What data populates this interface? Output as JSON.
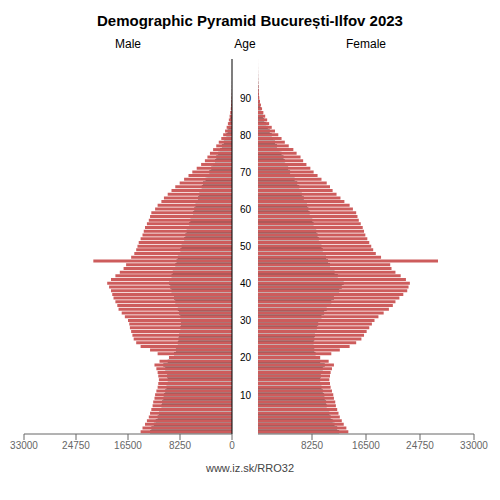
{
  "chart_data": [
    {
      "type": "bar",
      "orientation": "horizontal",
      "title": "Demographic Pyramid București-Ilfov 2023",
      "xlabel": "Male",
      "ylabel": "Age",
      "categories": [
        null,
        null,
        null,
        null,
        null,
        null,
        null,
        null,
        null,
        null,
        10,
        null,
        null,
        null,
        null,
        null,
        null,
        null,
        null,
        null,
        20,
        null,
        null,
        null,
        null,
        null,
        null,
        null,
        null,
        null,
        30,
        null,
        null,
        null,
        null,
        null,
        null,
        null,
        null,
        null,
        40,
        null,
        null,
        null,
        null,
        null,
        null,
        null,
        null,
        null,
        50,
        null,
        null,
        null,
        null,
        null,
        null,
        null,
        null,
        null,
        60,
        null,
        null,
        null,
        null,
        null,
        null,
        null,
        null,
        null,
        70,
        null,
        null,
        null,
        null,
        null,
        null,
        null,
        null,
        null,
        80,
        null,
        null,
        null,
        null,
        null,
        null,
        null,
        null,
        null,
        90,
        null,
        null,
        null,
        null,
        null,
        null,
        null,
        null,
        null,
        null
      ],
      "xlim": [
        0,
        33000
      ],
      "xticks": [
        0,
        8250,
        16500,
        24750,
        33000
      ],
      "series": [
        {
          "color": "#1a1a1a",
          "values": [
            13000,
            12800,
            12400,
            12100,
            11800,
            11600,
            11400,
            11200,
            11100,
            10900,
            10800,
            10600,
            10400,
            10300,
            10200,
            10300,
            10400,
            10600,
            10900,
            10200,
            9500,
            9200,
            8900,
            8700,
            8600,
            8500,
            8400,
            8300,
            8200,
            8100,
            8000,
            8200,
            8400,
            8600,
            8800,
            9000,
            9200,
            9400,
            9600,
            9800,
            10000,
            9800,
            9600,
            9400,
            9200,
            9000,
            8800,
            8600,
            8400,
            8200,
            8000,
            7800,
            7600,
            7400,
            7200,
            7000,
            6800,
            6600,
            6400,
            6200,
            6000,
            5800,
            5600,
            5400,
            5200,
            5000,
            4800,
            4600,
            4200,
            3900,
            3600,
            3300,
            3000,
            2700,
            2500,
            2200,
            1900,
            1600,
            1300,
            1100,
            900,
            700,
            550,
            420,
            320,
            240,
            170,
            120,
            80,
            52,
            33,
            20,
            13,
            8,
            5,
            3,
            2,
            1,
            1,
            0,
            0
          ]
        },
        {
          "color": "#cd5c5c",
          "values": [
            14500,
            14200,
            13800,
            13500,
            13200,
            13000,
            12800,
            12600,
            12500,
            12300,
            12200,
            12000,
            11800,
            11700,
            11600,
            11700,
            11800,
            12000,
            12300,
            11500,
            10000,
            11800,
            13000,
            14500,
            15200,
            15600,
            15800,
            16000,
            16200,
            16300,
            16500,
            17000,
            17500,
            18000,
            18200,
            18500,
            18800,
            19000,
            19200,
            19500,
            19800,
            19200,
            18500,
            17800,
            17200,
            16800,
            22000,
            16000,
            15500,
            15200,
            15000,
            14800,
            14500,
            14200,
            14000,
            13800,
            13500,
            13200,
            13000,
            12800,
            12200,
            11800,
            11200,
            10800,
            10200,
            9600,
            9000,
            8300,
            7600,
            6900,
            6300,
            5600,
            4900,
            4300,
            3900,
            3500,
            3000,
            2500,
            2100,
            1700,
            1400,
            1100,
            850,
            650,
            500,
            380,
            270,
            190,
            130,
            85,
            55,
            35,
            22,
            14,
            9,
            5,
            3,
            2,
            1,
            1,
            0
          ]
        }
      ]
    },
    {
      "type": "bar",
      "orientation": "horizontal",
      "xlabel": "Female",
      "annotations": [
        "www.iz.sk/RRO32"
      ],
      "categories": [
        null,
        null,
        null,
        null,
        null,
        null,
        null,
        null,
        null,
        null,
        10,
        null,
        null,
        null,
        null,
        null,
        null,
        null,
        null,
        null,
        20,
        null,
        null,
        null,
        null,
        null,
        null,
        null,
        null,
        null,
        30,
        null,
        null,
        null,
        null,
        null,
        null,
        null,
        null,
        null,
        40,
        null,
        null,
        null,
        null,
        null,
        null,
        null,
        null,
        null,
        50,
        null,
        null,
        null,
        null,
        null,
        null,
        null,
        null,
        null,
        60,
        null,
        null,
        null,
        null,
        null,
        null,
        null,
        null,
        null,
        70,
        null,
        null,
        null,
        null,
        null,
        null,
        null,
        null,
        null,
        80,
        null,
        null,
        null,
        null,
        null,
        null,
        null,
        null,
        null,
        90,
        null,
        null,
        null,
        null,
        null,
        null,
        null,
        null,
        null,
        null
      ],
      "xlim": [
        0,
        33000
      ],
      "xticks": [
        0,
        8250,
        16500,
        24750,
        33000
      ],
      "series": [
        {
          "color": "#1a1a1a",
          "values": [
            12400,
            12100,
            11700,
            11400,
            11100,
            10900,
            10700,
            10500,
            10400,
            10200,
            10100,
            9900,
            9700,
            9600,
            9500,
            9600,
            9700,
            9900,
            10200,
            9500,
            9000,
            8800,
            8600,
            8500,
            8500,
            8600,
            8700,
            8800,
            9000,
            9200,
            9400,
            9700,
            10100,
            10500,
            10900,
            11200,
            11600,
            12000,
            12400,
            12800,
            13100,
            12700,
            12200,
            11700,
            11200,
            11000,
            10700,
            10400,
            10100,
            9900,
            9700,
            9500,
            9300,
            9100,
            8900,
            8700,
            8500,
            8300,
            8100,
            7900,
            7700,
            7500,
            7200,
            7000,
            6700,
            6500,
            6300,
            6000,
            5600,
            5200,
            4900,
            4600,
            4300,
            4100,
            3900,
            3600,
            3300,
            2900,
            2600,
            2300,
            2100,
            1800,
            1500,
            1200,
            950,
            750,
            570,
            430,
            310,
            210,
            140,
            100,
            70,
            45,
            28,
            18,
            11,
            7,
            4,
            2,
            1
          ]
        },
        {
          "color": "#cd5c5c",
          "values": [
            13800,
            13500,
            13100,
            12800,
            12500,
            12300,
            12100,
            11900,
            11800,
            11600,
            11500,
            11300,
            11100,
            11000,
            10900,
            11000,
            11100,
            11300,
            11600,
            10800,
            9500,
            11200,
            12500,
            14000,
            15000,
            15800,
            16200,
            16600,
            17000,
            17400,
            17800,
            18400,
            19200,
            20000,
            20600,
            21000,
            21600,
            22200,
            22800,
            23000,
            23200,
            22600,
            21800,
            21000,
            20400,
            20200,
            27500,
            18800,
            18000,
            17600,
            17300,
            17000,
            16700,
            16400,
            16200,
            16000,
            15700,
            15400,
            15200,
            15000,
            14500,
            14000,
            13200,
            12600,
            12000,
            11400,
            11000,
            10500,
            9700,
            9100,
            8500,
            8000,
            7400,
            6900,
            6500,
            5900,
            5400,
            4700,
            4100,
            3600,
            3100,
            2600,
            2100,
            1700,
            1400,
            1100,
            820,
            620,
            450,
            310,
            200,
            145,
            100,
            65,
            40,
            25,
            16,
            10,
            6,
            3,
            2
          ]
        }
      ]
    }
  ]
}
